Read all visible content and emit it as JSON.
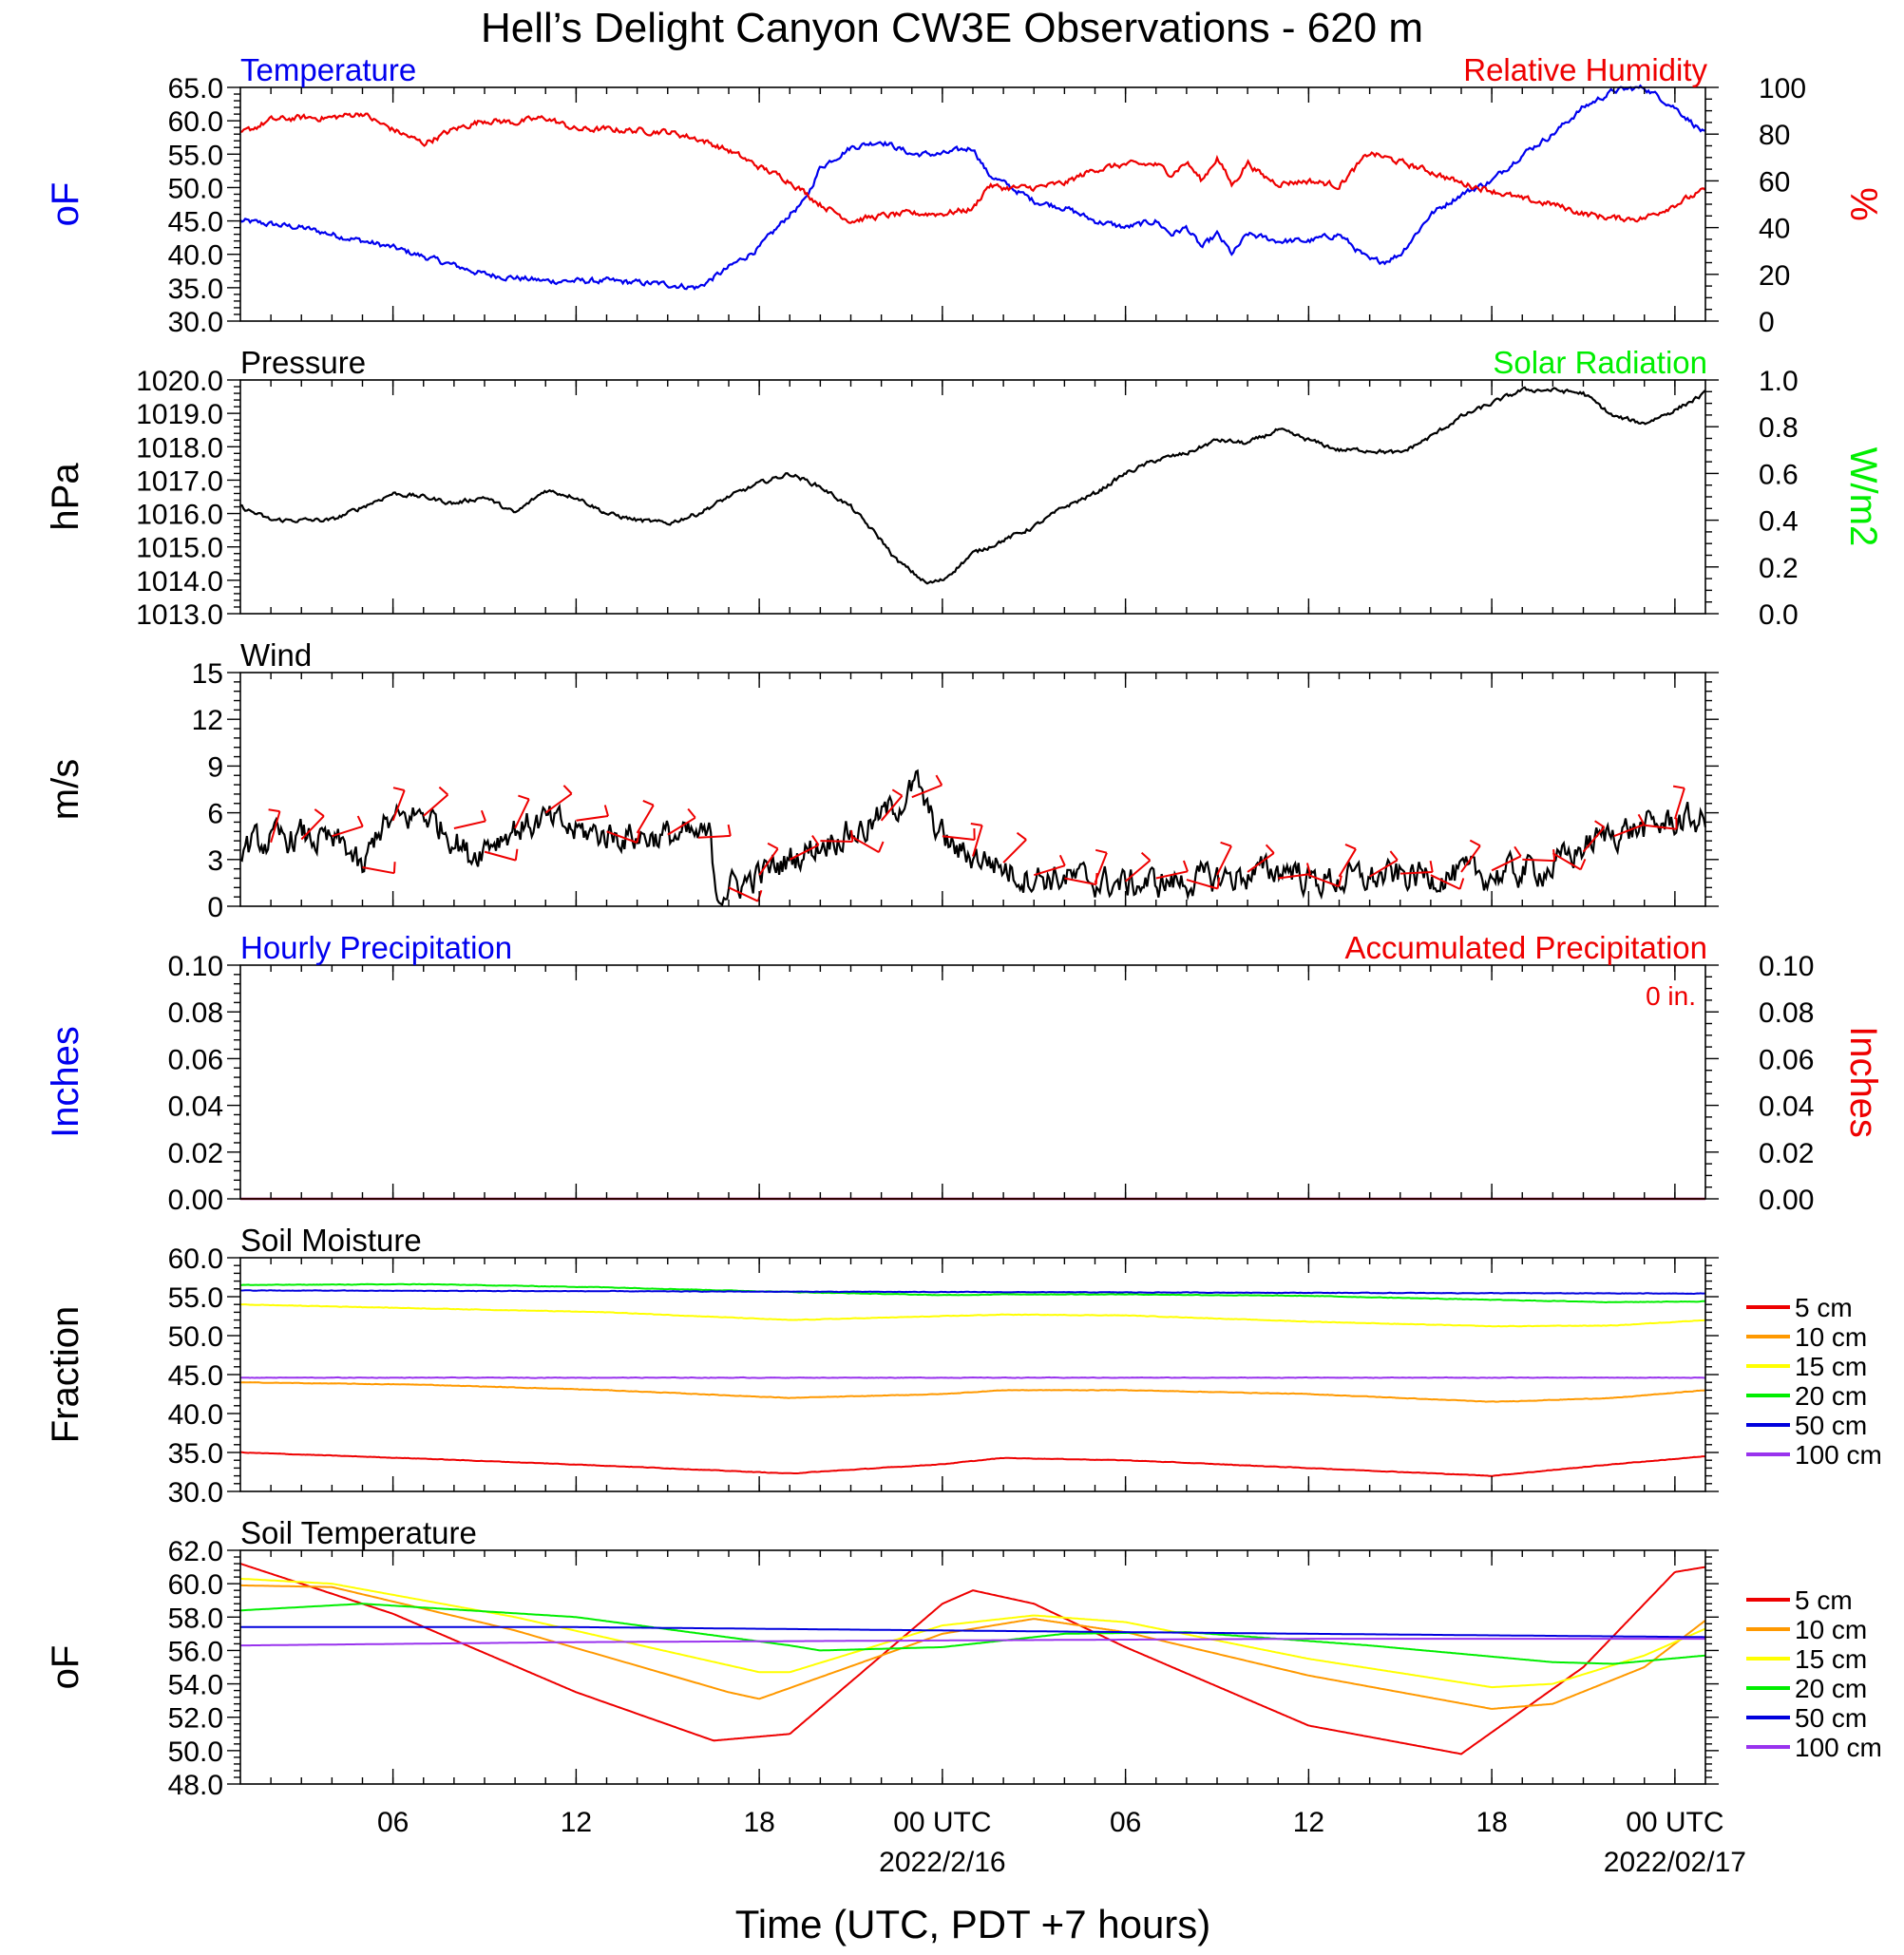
{
  "title": "Hell’s Delight Canyon CW3E Observations - 620 m",
  "xaxis": {
    "label": "Time (UTC, PDT +7 hours)",
    "range_hours": [
      -23,
      25
    ],
    "ticks": [
      {
        "h": -18,
        "label": "06"
      },
      {
        "h": -12,
        "label": "12"
      },
      {
        "h": -6,
        "label": "18"
      },
      {
        "h": 0,
        "label": "00 UTC",
        "date": "2022/2/16"
      },
      {
        "h": 6,
        "label": "06"
      },
      {
        "h": 12,
        "label": "12"
      },
      {
        "h": 18,
        "label": "18"
      },
      {
        "h": 24,
        "label": "00 UTC",
        "date": "2022/02/17"
      }
    ]
  },
  "colors": {
    "temperature": "#0000ee",
    "humidity": "#ee0000",
    "solar": "#00ee00",
    "black": "#000000",
    "depth_5": "#ee0000",
    "depth_10": "#ff9900",
    "depth_15": "#ffff00",
    "depth_20": "#00ee00",
    "depth_50": "#0000dd",
    "depth_100": "#9933ee"
  },
  "chart_data": [
    {
      "type": "line",
      "panel": "temp_rh",
      "left_title": "Temperature",
      "right_title": "Relative Humidity",
      "ylabel_left": "oF",
      "ylabel_right": "%",
      "ylim_left": [
        30,
        65
      ],
      "ylim_right": [
        0,
        100
      ],
      "yticks_left": [
        "30.0",
        "35.0",
        "40.0",
        "45.0",
        "50.0",
        "55.0",
        "60.0",
        "65.0"
      ],
      "yticks_right": [
        "0",
        "20",
        "40",
        "60",
        "80",
        "100"
      ],
      "series": [
        {
          "key": "temperature",
          "axis": "left",
          "noise": 0.4,
          "x": [
            -23,
            -21,
            -18,
            -15,
            -13,
            -11,
            -9,
            -8,
            -7,
            -6,
            -5,
            -4.5,
            -4,
            -3,
            -2,
            -1,
            0,
            1,
            1.5,
            3,
            4,
            5,
            6,
            7,
            7.5,
            8,
            8.5,
            9,
            9.5,
            10,
            11,
            11.5,
            12,
            13,
            14,
            14.5,
            15,
            16,
            17,
            18,
            19,
            20,
            21,
            22,
            23,
            24,
            25
          ],
          "y": [
            45,
            44,
            41,
            37,
            36,
            36,
            35.5,
            35,
            38,
            41,
            46,
            48,
            53,
            56,
            57,
            55,
            55,
            56,
            52,
            48,
            47,
            45,
            44,
            45,
            43,
            44,
            41,
            43,
            40,
            43,
            42,
            42,
            42,
            43,
            39,
            39,
            40,
            46,
            49,
            51,
            55,
            58,
            62,
            64.5,
            65,
            62,
            58
          ]
        },
        {
          "key": "humidity",
          "axis": "right",
          "noise": 1.2,
          "x": [
            -23,
            -22,
            -21,
            -20,
            -19,
            -18.5,
            -17,
            -16,
            -15,
            -14,
            -13,
            -12,
            -11,
            -9,
            -8,
            -7,
            -6,
            -5,
            -4,
            -3,
            -2,
            -1,
            0,
            1,
            1.5,
            2,
            3,
            4,
            5,
            6,
            7,
            7.5,
            8,
            8.5,
            9,
            9.5,
            10,
            10.5,
            11,
            12,
            13,
            14,
            15,
            16,
            17,
            18,
            19,
            20,
            21,
            22,
            23,
            24,
            25
          ],
          "y": [
            80,
            86,
            87,
            87,
            89,
            85,
            76,
            82,
            86,
            85,
            87,
            82,
            82,
            81,
            78,
            73,
            66,
            60,
            50,
            43,
            45,
            46,
            46,
            48,
            58,
            57,
            57,
            59,
            65,
            67,
            67,
            63,
            68,
            60,
            70,
            58,
            68,
            62,
            59,
            60,
            58,
            72,
            68,
            64,
            59,
            56,
            52,
            50,
            46,
            44,
            44,
            50,
            56
          ]
        }
      ]
    },
    {
      "type": "line",
      "panel": "pressure",
      "left_title": "Pressure",
      "right_title": "Solar Radiation",
      "ylabel_left": "hPa",
      "ylabel_right": "W/m2",
      "ylim_left": [
        1013,
        1020
      ],
      "ylim_right": [
        0,
        1
      ],
      "yticks_left": [
        "1013.0",
        "1014.0",
        "1015.0",
        "1016.0",
        "1017.0",
        "1018.0",
        "1019.0",
        "1020.0"
      ],
      "yticks_right": [
        "0.0",
        "0.2",
        "0.4",
        "0.6",
        "0.8",
        "1.0"
      ],
      "series": [
        {
          "key": "black",
          "axis": "left",
          "noise": 0.06,
          "x": [
            -23,
            -22,
            -20,
            -19,
            -18,
            -17,
            -16,
            -15,
            -14,
            -13,
            -12,
            -11,
            -10,
            -9,
            -8,
            -7,
            -6,
            -5,
            -4,
            -3,
            -2,
            -1.5,
            -0.5,
            0,
            1,
            2,
            3,
            4,
            5,
            6,
            7,
            8,
            9,
            10,
            11,
            12,
            13,
            14,
            15,
            16,
            17,
            18,
            19,
            20,
            21,
            22,
            23,
            24,
            25
          ],
          "y": [
            1016.2,
            1015.8,
            1015.8,
            1016.2,
            1016.6,
            1016.5,
            1016.3,
            1016.5,
            1016.0,
            1016.7,
            1016.5,
            1016.0,
            1015.8,
            1015.7,
            1016.0,
            1016.5,
            1016.9,
            1017.2,
            1016.8,
            1016.2,
            1015.2,
            1014.6,
            1013.9,
            1014.0,
            1014.8,
            1015.2,
            1015.6,
            1016.2,
            1016.6,
            1017.2,
            1017.6,
            1017.8,
            1018.2,
            1018.1,
            1018.5,
            1018.2,
            1017.9,
            1017.9,
            1017.8,
            1018.3,
            1018.9,
            1019.3,
            1019.7,
            1019.7,
            1019.6,
            1018.9,
            1018.7,
            1019.1,
            1019.6
          ]
        }
      ]
    },
    {
      "type": "line",
      "panel": "wind",
      "left_title": "Wind",
      "ylabel_left": "m/s",
      "ylim_left": [
        0,
        15
      ],
      "yticks_left": [
        "0",
        "3",
        "6",
        "9",
        "12",
        "15"
      ],
      "series": [
        {
          "key": "black",
          "axis": "left",
          "noise": 0.9,
          "x": [
            -23,
            -21,
            -19.5,
            -19,
            -18.5,
            -17,
            -16,
            -15.5,
            -15,
            -14,
            -13,
            -12,
            -11,
            -10,
            -9,
            -8,
            -7.6,
            -7.4,
            -6.5,
            -5.5,
            -4.5,
            -3.5,
            -2.5,
            -1.5,
            -0.8,
            -0.5,
            0,
            0.5,
            1.5,
            2.5,
            4,
            6,
            8,
            10,
            11.5,
            12,
            14,
            16,
            18,
            20,
            21,
            22,
            23,
            24,
            25
          ],
          "y": [
            3.8,
            4.5,
            3.8,
            2.0,
            5.0,
            6.0,
            4.5,
            3.2,
            4.0,
            5.0,
            5.5,
            4.8,
            4.6,
            4.5,
            4.5,
            4.4,
            4.4,
            1.0,
            1.5,
            2.5,
            3.5,
            4.5,
            5.0,
            6.5,
            7.8,
            6.0,
            4.5,
            3.5,
            3.0,
            2.0,
            1.8,
            1.4,
            1.6,
            2.0,
            2.5,
            1.6,
            1.8,
            2.0,
            2.0,
            2.5,
            3.8,
            4.8,
            5.0,
            5.5,
            5.5
          ]
        }
      ]
    },
    {
      "type": "line",
      "panel": "precip",
      "left_title": "Hourly Precipitation",
      "right_title": "Accumulated Precipitation",
      "annotation": "0 in.",
      "ylabel_left": "Inches",
      "ylabel_right": "Inches",
      "ylim_left": [
        0,
        0.1
      ],
      "ylim_right": [
        0,
        0.1
      ],
      "yticks_left": [
        "0.00",
        "0.02",
        "0.04",
        "0.06",
        "0.08",
        "0.10"
      ],
      "yticks_right": [
        "0.00",
        "0.02",
        "0.04",
        "0.06",
        "0.08",
        "0.10"
      ],
      "series": [
        {
          "key": "temperature",
          "axis": "left",
          "noise": 0,
          "x": [
            -23,
            25
          ],
          "y": [
            0,
            0
          ]
        },
        {
          "key": "humidity",
          "axis": "left",
          "noise": 0,
          "x": [
            -23,
            25
          ],
          "y": [
            0,
            0
          ]
        }
      ]
    },
    {
      "type": "line",
      "panel": "soil_moisture",
      "left_title": "Soil Moisture",
      "ylabel_left": "Fraction",
      "ylim_left": [
        30,
        60
      ],
      "yticks_left": [
        "30.0",
        "35.0",
        "40.0",
        "45.0",
        "50.0",
        "55.0",
        "60.0"
      ],
      "legend": [
        "5 cm",
        "10 cm",
        "15 cm",
        "20 cm",
        "50 cm",
        "100 cm"
      ],
      "series": [
        {
          "key": "depth_5",
          "axis": "left",
          "noise": 0.03,
          "x": [
            -23,
            -17,
            -11,
            -5,
            0,
            2,
            6,
            12,
            18,
            22,
            25
          ],
          "y": [
            35,
            34.2,
            33.3,
            32.3,
            33.5,
            34.3,
            34,
            33,
            32,
            33.5,
            34.5
          ]
        },
        {
          "key": "depth_10",
          "axis": "left",
          "noise": 0.03,
          "x": [
            -23,
            -17,
            -11,
            -5,
            0,
            2,
            6,
            12,
            18,
            22,
            25
          ],
          "y": [
            44,
            43.7,
            43,
            42,
            42.5,
            43,
            43,
            42.5,
            41.5,
            42,
            43
          ]
        },
        {
          "key": "depth_15",
          "axis": "left",
          "noise": 0.03,
          "x": [
            -23,
            -17,
            -11,
            -5,
            0,
            2,
            6,
            12,
            18,
            22,
            25
          ],
          "y": [
            54,
            53.5,
            53,
            52,
            52.5,
            52.7,
            52.6,
            51.8,
            51.2,
            51.3,
            52
          ]
        },
        {
          "key": "depth_20",
          "axis": "left",
          "noise": 0.03,
          "x": [
            -23,
            -17,
            -11,
            -5,
            0,
            2,
            6,
            12,
            18,
            22,
            25
          ],
          "y": [
            56.5,
            56.6,
            56.2,
            55.6,
            55.2,
            55.3,
            55.3,
            55.1,
            54.6,
            54.3,
            54.4
          ]
        },
        {
          "key": "depth_50",
          "axis": "left",
          "noise": 0.03,
          "x": [
            -23,
            -11,
            0,
            12,
            25
          ],
          "y": [
            55.8,
            55.7,
            55.6,
            55.5,
            55.4
          ]
        },
        {
          "key": "depth_100",
          "axis": "left",
          "noise": 0.03,
          "x": [
            -23,
            25
          ],
          "y": [
            44.6,
            44.6
          ]
        }
      ]
    },
    {
      "type": "line",
      "panel": "soil_temperature",
      "left_title": "Soil Temperature",
      "ylabel_left": "oF",
      "ylim_left": [
        48,
        62
      ],
      "yticks_left": [
        "48.0",
        "50.0",
        "52.0",
        "54.0",
        "56.0",
        "58.0",
        "60.0",
        "62.0"
      ],
      "legend": [
        "5 cm",
        "10 cm",
        "15 cm",
        "20 cm",
        "50 cm",
        "100 cm"
      ],
      "series": [
        {
          "key": "depth_5",
          "axis": "left",
          "noise": 0,
          "x": [
            -23,
            -18,
            -12,
            -7.5,
            -5,
            0,
            1,
            3,
            6,
            12,
            17,
            21,
            24,
            25
          ],
          "y": [
            61.2,
            58.2,
            53.5,
            50.6,
            51,
            58.8,
            59.6,
            58.8,
            56.2,
            51.5,
            49.8,
            55,
            60.7,
            61
          ]
        },
        {
          "key": "depth_10",
          "axis": "left",
          "noise": 0,
          "x": [
            -23,
            -20,
            -14,
            -7,
            -6,
            0,
            3,
            6,
            12,
            18,
            20,
            23,
            25
          ],
          "y": [
            59.9,
            59.8,
            57.2,
            53.5,
            53.1,
            57.0,
            57.9,
            57.1,
            54.5,
            52.5,
            52.8,
            55.0,
            57.8
          ]
        },
        {
          "key": "depth_15",
          "axis": "left",
          "noise": 0,
          "x": [
            -23,
            -20,
            -14,
            -6,
            -5,
            0,
            3,
            6,
            12,
            18,
            20,
            23,
            25
          ],
          "y": [
            60.3,
            60,
            58,
            54.7,
            54.7,
            57.5,
            58.1,
            57.7,
            55.5,
            53.8,
            54,
            55.7,
            57.3
          ]
        },
        {
          "key": "depth_20",
          "axis": "left",
          "noise": 0,
          "x": [
            -23,
            -19,
            -12,
            -5,
            -4,
            0,
            4,
            8,
            14,
            20,
            22,
            25
          ],
          "y": [
            58.4,
            58.8,
            58,
            56.3,
            56,
            56.2,
            57,
            57.1,
            56.3,
            55.3,
            55.2,
            55.7
          ]
        },
        {
          "key": "depth_50",
          "axis": "left",
          "noise": 0,
          "x": [
            -23,
            -12,
            0,
            12,
            25
          ],
          "y": [
            57.4,
            57.4,
            57.2,
            57,
            56.8
          ]
        },
        {
          "key": "depth_100",
          "axis": "left",
          "noise": 0,
          "x": [
            -23,
            -12,
            0,
            12,
            25
          ],
          "y": [
            56.3,
            56.5,
            56.6,
            56.7,
            56.7
          ]
        }
      ]
    }
  ],
  "wind_barbs": [
    {
      "h": -22,
      "s": 4.1
    },
    {
      "h": -21,
      "s": 4.3
    },
    {
      "h": -20,
      "s": 4.5
    },
    {
      "h": -19,
      "s": 2.5
    },
    {
      "h": -18,
      "s": 5.5
    },
    {
      "h": -17,
      "s": 5.8
    },
    {
      "h": -16,
      "s": 5.0
    },
    {
      "h": -15,
      "s": 3.5
    },
    {
      "h": -14,
      "s": 5.0
    },
    {
      "h": -13,
      "s": 6.0
    },
    {
      "h": -12,
      "s": 5.5
    },
    {
      "h": -11,
      "s": 4.8
    },
    {
      "h": -10,
      "s": 4.7
    },
    {
      "h": -9,
      "s": 4.6
    },
    {
      "h": -8,
      "s": 4.4
    },
    {
      "h": -7,
      "s": 1.2
    },
    {
      "h": -6,
      "s": 2.0
    },
    {
      "h": -5,
      "s": 3.0
    },
    {
      "h": -4,
      "s": 4.2
    },
    {
      "h": -3,
      "s": 4.5
    },
    {
      "h": -2,
      "s": 5.5
    },
    {
      "h": -1,
      "s": 7.0
    },
    {
      "h": 0,
      "s": 4.5
    },
    {
      "h": 1,
      "s": 3.2
    },
    {
      "h": 2,
      "s": 2.8
    },
    {
      "h": 3,
      "s": 2.0
    },
    {
      "h": 4,
      "s": 1.8
    },
    {
      "h": 5,
      "s": 1.5
    },
    {
      "h": 6,
      "s": 1.6
    },
    {
      "h": 7,
      "s": 1.8
    },
    {
      "h": 8,
      "s": 1.7
    },
    {
      "h": 9,
      "s": 2.0
    },
    {
      "h": 10,
      "s": 2.2
    },
    {
      "h": 11,
      "s": 1.8
    },
    {
      "h": 12,
      "s": 2.0
    },
    {
      "h": 13,
      "s": 1.9
    },
    {
      "h": 14,
      "s": 1.9
    },
    {
      "h": 15,
      "s": 2.1
    },
    {
      "h": 16,
      "s": 2.0
    },
    {
      "h": 17,
      "s": 2.2
    },
    {
      "h": 18,
      "s": 2.3
    },
    {
      "h": 19,
      "s": 3.0
    },
    {
      "h": 20,
      "s": 3.4
    },
    {
      "h": 21,
      "s": 3.5
    },
    {
      "h": 22,
      "s": 4.5
    },
    {
      "h": 23,
      "s": 5.2
    },
    {
      "h": 24,
      "s": 5.6
    }
  ]
}
